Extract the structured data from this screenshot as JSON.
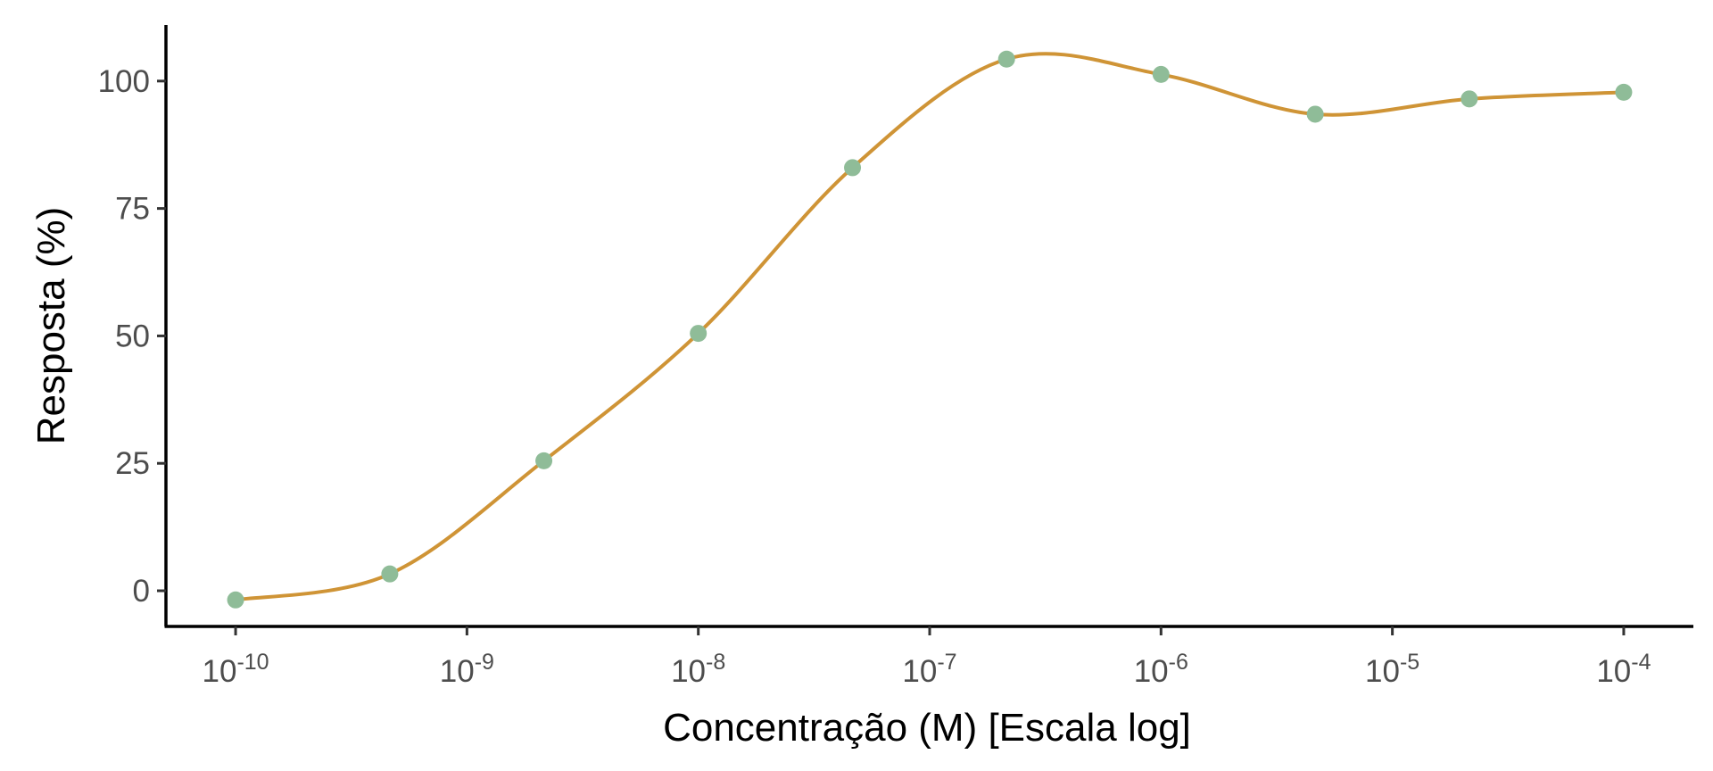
{
  "chart_data": {
    "type": "line",
    "xlabel": "Concentração (M) [Escala log]",
    "ylabel": "Resposta (%)",
    "x_scale": "log10",
    "xlim": [
      5e-11,
      0.0002
    ],
    "ylim": [
      -7,
      111
    ],
    "x_ticks": [
      {
        "value": 1e-10,
        "base": "10",
        "exp": "-10"
      },
      {
        "value": 1e-09,
        "base": "10",
        "exp": "-9"
      },
      {
        "value": 1e-08,
        "base": "10",
        "exp": "-8"
      },
      {
        "value": 1e-07,
        "base": "10",
        "exp": "-7"
      },
      {
        "value": 1e-06,
        "base": "10",
        "exp": "-6"
      },
      {
        "value": 1e-05,
        "base": "10",
        "exp": "-5"
      },
      {
        "value": 0.0001,
        "base": "10",
        "exp": "-4"
      }
    ],
    "y_ticks": [
      0,
      25,
      50,
      75,
      100
    ],
    "grid": false,
    "legend": "none",
    "series": [
      {
        "style": "points",
        "color": "#8fbc98",
        "x": [
          1e-10,
          4.64e-10,
          2.15e-09,
          1e-08,
          4.64e-08,
          2.15e-07,
          1e-06,
          4.64e-06,
          2.15e-05,
          0.0001
        ],
        "y": [
          -1.8,
          3.3,
          25.5,
          50.5,
          83.0,
          104.3,
          101.3,
          93.5,
          96.5,
          97.8
        ]
      },
      {
        "style": "smooth-line",
        "color": "#cf9436",
        "x": [
          1e-10,
          4.64e-10,
          2.15e-09,
          1e-08,
          4.64e-08,
          2.15e-07,
          1e-06,
          4.64e-06,
          2.15e-05,
          0.0001
        ],
        "y": [
          -1.8,
          3.3,
          25.5,
          50.5,
          83.0,
          104.3,
          101.3,
          93.5,
          96.5,
          97.8
        ]
      }
    ]
  }
}
